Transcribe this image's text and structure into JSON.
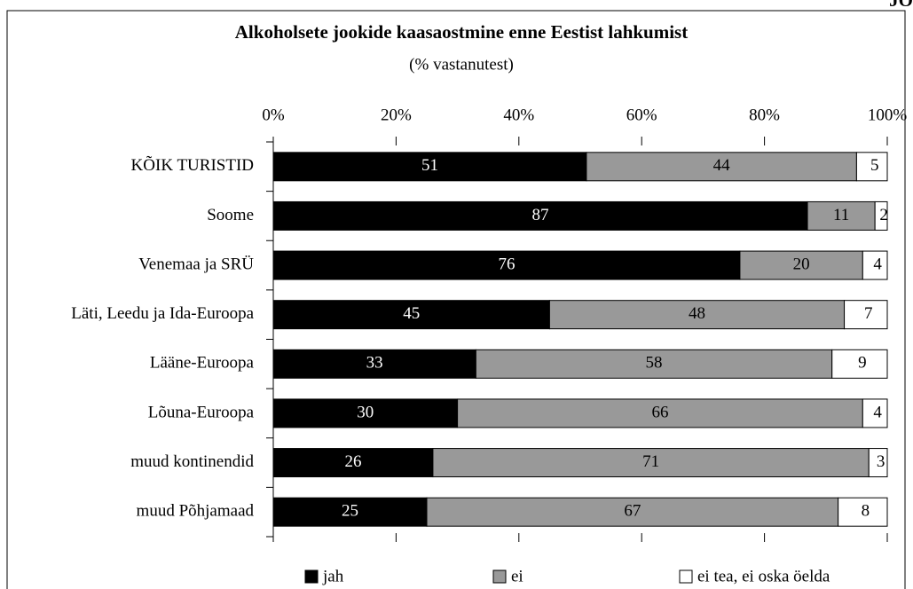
{
  "corner_label": "JO",
  "chart_data": {
    "type": "stacked_bar_horizontal",
    "title": "Alkoholsete jookide kaasaostmine enne Eestist lahkumist",
    "subtitle": "(% vastanutest)",
    "categories": [
      "KÕIK TURISTID",
      "Soome",
      "Venemaa ja SRÜ",
      "Läti, Leedu ja Ida-Euroopa",
      "Lääne-Euroopa",
      "Lõuna-Euroopa",
      "muud kontinendid",
      "muud Põhjamaad"
    ],
    "series": [
      {
        "name": "jah",
        "color": "#000000",
        "values": [
          51,
          87,
          76,
          45,
          33,
          30,
          26,
          25
        ]
      },
      {
        "name": "ei",
        "color": "#999999",
        "values": [
          44,
          11,
          20,
          48,
          58,
          66,
          71,
          67
        ]
      },
      {
        "name": "ei tea, ei oska öelda",
        "color": "#ffffff",
        "values": [
          5,
          2,
          4,
          7,
          9,
          4,
          3,
          8
        ]
      }
    ],
    "xlim": [
      0,
      100
    ],
    "xticks": [
      {
        "value": 0,
        "label": "0%"
      },
      {
        "value": 20,
        "label": "20%"
      },
      {
        "value": 40,
        "label": "40%"
      },
      {
        "value": 60,
        "label": "60%"
      },
      {
        "value": 80,
        "label": "80%"
      },
      {
        "value": 100,
        "label": "100%"
      }
    ],
    "legend": "bottom"
  }
}
